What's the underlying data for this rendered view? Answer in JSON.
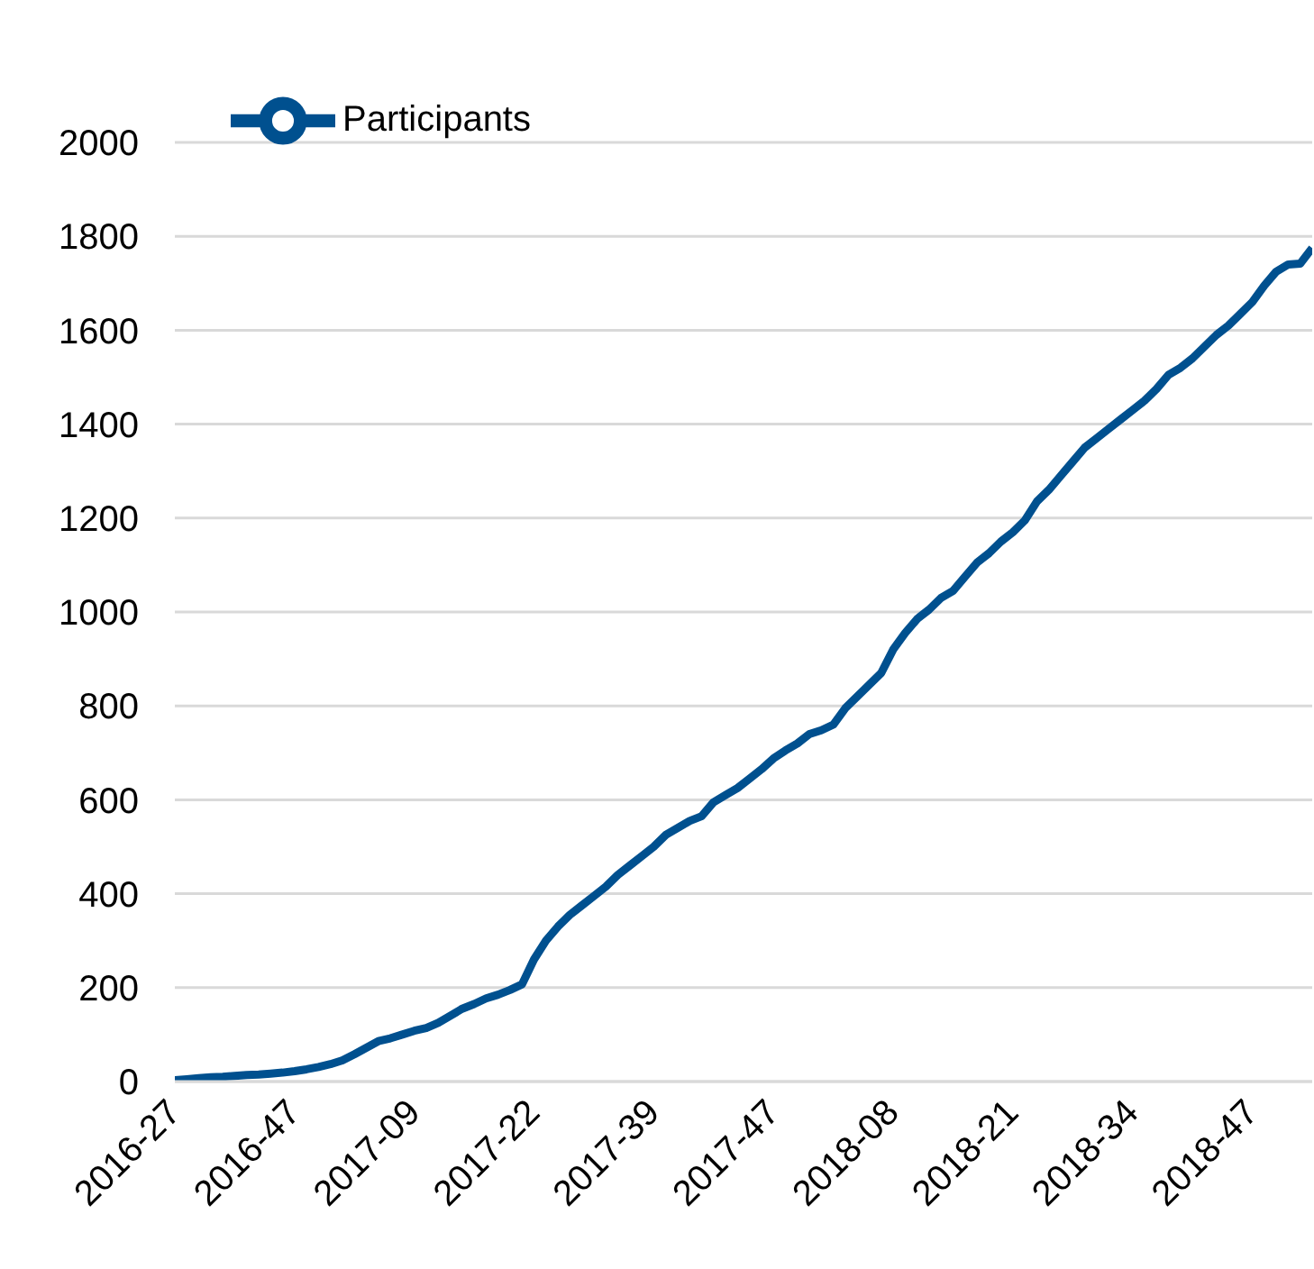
{
  "chart_data": {
    "type": "line",
    "categories": [
      "2016-27",
      null,
      null,
      null,
      null,
      null,
      null,
      null,
      null,
      null,
      "2016-47",
      null,
      null,
      null,
      null,
      null,
      null,
      null,
      null,
      null,
      "2017-09",
      null,
      null,
      null,
      null,
      null,
      null,
      null,
      null,
      null,
      "2017-22",
      null,
      null,
      null,
      null,
      null,
      null,
      null,
      null,
      null,
      "2017-39",
      null,
      null,
      null,
      null,
      null,
      null,
      null,
      null,
      null,
      "2017-47",
      null,
      null,
      null,
      null,
      null,
      null,
      null,
      null,
      null,
      "2018-08",
      null,
      null,
      null,
      null,
      null,
      null,
      null,
      null,
      null,
      "2018-21",
      null,
      null,
      null,
      null,
      null,
      null,
      null,
      null,
      null,
      "2018-34",
      null,
      null,
      null,
      null,
      null,
      null,
      null,
      null,
      null,
      "2018-47",
      null,
      null,
      null,
      null,
      null
    ],
    "series": [
      {
        "name": "Participants",
        "color": "#00508f",
        "values": [
          3,
          5,
          7,
          9,
          10,
          12,
          14,
          15,
          17,
          19,
          22,
          26,
          31,
          37,
          45,
          58,
          72,
          86,
          92,
          100,
          108,
          114,
          125,
          140,
          155,
          165,
          177,
          185,
          195,
          207,
          260,
          300,
          330,
          355,
          375,
          395,
          415,
          440,
          460,
          480,
          500,
          525,
          540,
          555,
          565,
          595,
          610,
          625,
          645,
          665,
          688,
          705,
          720,
          740,
          748,
          760,
          795,
          820,
          845,
          870,
          920,
          955,
          985,
          1005,
          1030,
          1045,
          1075,
          1105,
          1125,
          1150,
          1170,
          1195,
          1235,
          1260,
          1290,
          1320,
          1350,
          1370,
          1390,
          1410,
          1430,
          1450,
          1475,
          1505,
          1520,
          1540,
          1565,
          1590,
          1610,
          1635,
          1660,
          1695,
          1725,
          1740,
          1742,
          1775
        ]
      }
    ],
    "ylim": [
      0,
      2000
    ],
    "yticks": [
      0,
      200,
      400,
      600,
      800,
      1000,
      1200,
      1400,
      1600,
      1800,
      2000
    ],
    "grid": "y",
    "legend": "top left",
    "marker": "none",
    "line_style": "solid"
  }
}
